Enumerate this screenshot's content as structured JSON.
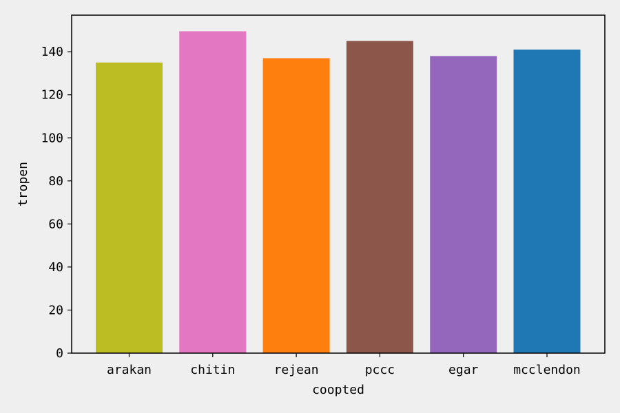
{
  "chart_data": {
    "type": "bar",
    "title": "",
    "xlabel": "coopted",
    "ylabel": "tropen",
    "categories": [
      "arakan",
      "chitin",
      "rejean",
      "pccc",
      "egar",
      "mcclendon"
    ],
    "values": [
      135,
      149.5,
      137,
      145,
      138,
      141
    ],
    "colors": [
      "#bcbd22",
      "#e377c2",
      "#ff7f0e",
      "#8c564b",
      "#9467bd",
      "#1f77b4"
    ],
    "ylim": [
      0,
      157
    ],
    "yticks": [
      0,
      20,
      40,
      60,
      80,
      100,
      120,
      140
    ],
    "grid": false,
    "background": "#efefef"
  }
}
